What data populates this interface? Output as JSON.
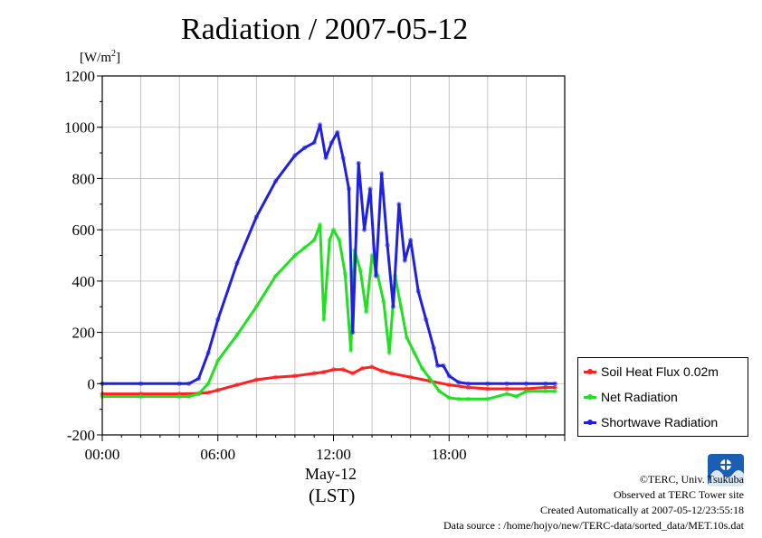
{
  "page": {
    "title": "Radiation / 2007-05-12",
    "unit_label": "[W/m",
    "unit_sup": "2",
    "unit_close": "]",
    "date_label": "May-12",
    "tz_label": "(LST)",
    "footer": {
      "copyright": "©TERC, Univ. Tsukuba",
      "observed": "Observed at TERC Tower site",
      "created": "Created Automatically at 2007-05-12/23:55:18",
      "source": "Data source : /home/hojyo/new/TERC-data/sorted_data/MET.10s.dat"
    },
    "logo_icon": "terc-logo-icon"
  },
  "chart_data": {
    "type": "line",
    "title": "Radiation / 2007-05-12",
    "xlabel": "May-12 (LST)",
    "ylabel": "[W/m2]",
    "xlim": [
      0,
      24
    ],
    "ylim": [
      -200,
      1200
    ],
    "x_ticks": [
      0,
      6,
      12,
      18
    ],
    "x_tick_labels": [
      "00:00",
      "06:00",
      "12:00",
      "18:00"
    ],
    "y_ticks": [
      -200,
      0,
      200,
      400,
      600,
      800,
      1000,
      1200
    ],
    "y_tick_labels": [
      "-200",
      "0",
      "200",
      "400",
      "600",
      "800",
      "1000",
      "1200"
    ],
    "grid": true,
    "legend_position": "right",
    "series": [
      {
        "name": "Soil Heat Flux 0.02m",
        "color": "#ff2020",
        "x": [
          0,
          2,
          4,
          5,
          5.5,
          6,
          7,
          8,
          9,
          10,
          11,
          11.5,
          12,
          12.5,
          13,
          13.5,
          14,
          14.5,
          15,
          16,
          17,
          18,
          19,
          20,
          21,
          22,
          23,
          23.5
        ],
        "y": [
          -40,
          -40,
          -40,
          -38,
          -35,
          -25,
          -5,
          15,
          25,
          30,
          40,
          45,
          55,
          55,
          40,
          60,
          65,
          50,
          40,
          25,
          10,
          -5,
          -15,
          -20,
          -20,
          -20,
          -15,
          -15
        ]
      },
      {
        "name": "Net Radiation",
        "color": "#20e020",
        "x": [
          0,
          2,
          4,
          4.5,
          5,
          5.5,
          6,
          7,
          8,
          9,
          10,
          10.5,
          11,
          11.3,
          11.5,
          11.8,
          12,
          12.3,
          12.6,
          12.9,
          13.1,
          13.4,
          13.7,
          14,
          14.3,
          14.6,
          14.9,
          15.2,
          15.5,
          15.8,
          16.2,
          16.6,
          17,
          17.5,
          18,
          18.5,
          19,
          20,
          21,
          21.5,
          22,
          23,
          23.5
        ],
        "y": [
          -50,
          -50,
          -50,
          -50,
          -40,
          0,
          90,
          190,
          300,
          420,
          500,
          530,
          560,
          620,
          250,
          560,
          600,
          560,
          430,
          130,
          520,
          440,
          280,
          500,
          420,
          320,
          120,
          420,
          300,
          180,
          120,
          60,
          20,
          -30,
          -55,
          -60,
          -60,
          -60,
          -40,
          -50,
          -30,
          -30,
          -30
        ]
      },
      {
        "name": "Shortwave Radiation",
        "color": "#2020e0",
        "x": [
          0,
          2,
          4,
          4.5,
          5,
          5.5,
          6,
          7,
          8,
          9,
          10,
          10.5,
          11,
          11.3,
          11.6,
          11.9,
          12.2,
          12.5,
          12.8,
          13.0,
          13.3,
          13.6,
          13.9,
          14.2,
          14.5,
          14.8,
          15.1,
          15.4,
          15.7,
          16,
          16.4,
          16.8,
          17.2,
          17.4,
          17.7,
          18,
          18.5,
          19,
          20,
          21,
          22,
          23,
          23.5
        ],
        "y": [
          0,
          0,
          0,
          0,
          20,
          120,
          250,
          470,
          650,
          790,
          890,
          920,
          940,
          1010,
          880,
          940,
          980,
          880,
          760,
          200,
          860,
          600,
          760,
          420,
          820,
          540,
          300,
          700,
          480,
          560,
          360,
          250,
          140,
          70,
          70,
          30,
          5,
          0,
          0,
          0,
          0,
          0,
          0
        ]
      }
    ]
  }
}
